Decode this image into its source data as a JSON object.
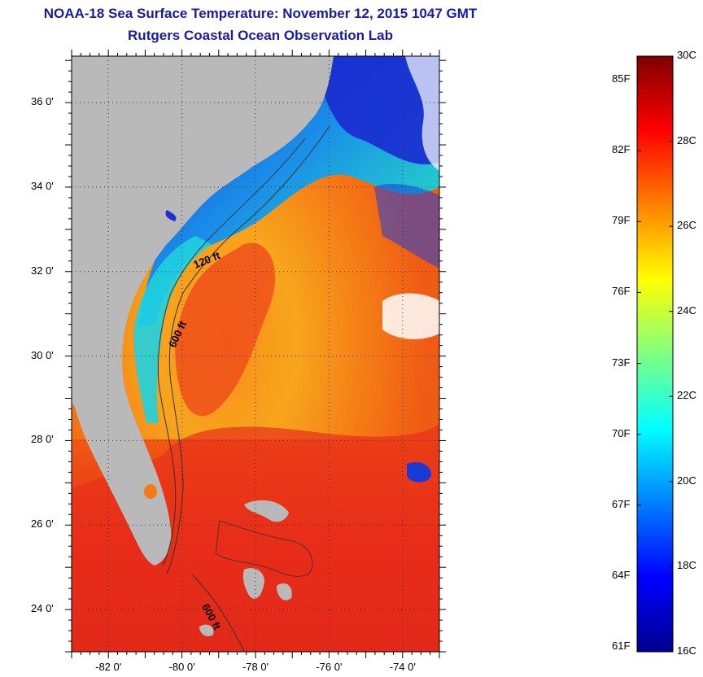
{
  "header": {
    "title": "NOAA-18 Sea Surface Temperature:  November 12, 2015 1047 GMT",
    "subtitle": "Rutgers Coastal Ocean Observation Lab"
  },
  "map": {
    "lat_labels": [
      "36 0'",
      "34 0'",
      "32 0'",
      "30 0'",
      "28 0'",
      "26 0'",
      "24 0'"
    ],
    "lon_labels": [
      "-82 0'",
      "-80 0'",
      "-78 0'",
      "-76 0'",
      "-74 0'"
    ],
    "lat_values": [
      36,
      34,
      32,
      30,
      28,
      26,
      24
    ],
    "lon_values": [
      -82,
      -80,
      -78,
      -76,
      -74
    ],
    "lat_range": [
      23,
      37.1
    ],
    "lon_range": [
      -83,
      -73
    ],
    "contour_labels": [
      "120 ft",
      "600 ft",
      "600 ft"
    ],
    "colors": {
      "land": "#b9b9b9",
      "deep_warm": "#d81a1a",
      "warm": "#f56a10",
      "mid": "#f9a81a",
      "cool": "#18d4dc",
      "cold": "#1a2fd6"
    }
  },
  "colorbar": {
    "fahrenheit_labels": [
      "85F",
      "82F",
      "79F",
      "76F",
      "73F",
      "70F",
      "67F",
      "64F",
      "61F"
    ],
    "celsius_labels": [
      "30C",
      "28C",
      "26C",
      "24C",
      "22C",
      "20C",
      "18C",
      "16C"
    ],
    "range_c": [
      16,
      30
    ],
    "stops": [
      "#00008f",
      "#0000ff",
      "#0080ff",
      "#00ffff",
      "#80ff80",
      "#ffff00",
      "#ff8000",
      "#ff0000",
      "#800000"
    ]
  }
}
